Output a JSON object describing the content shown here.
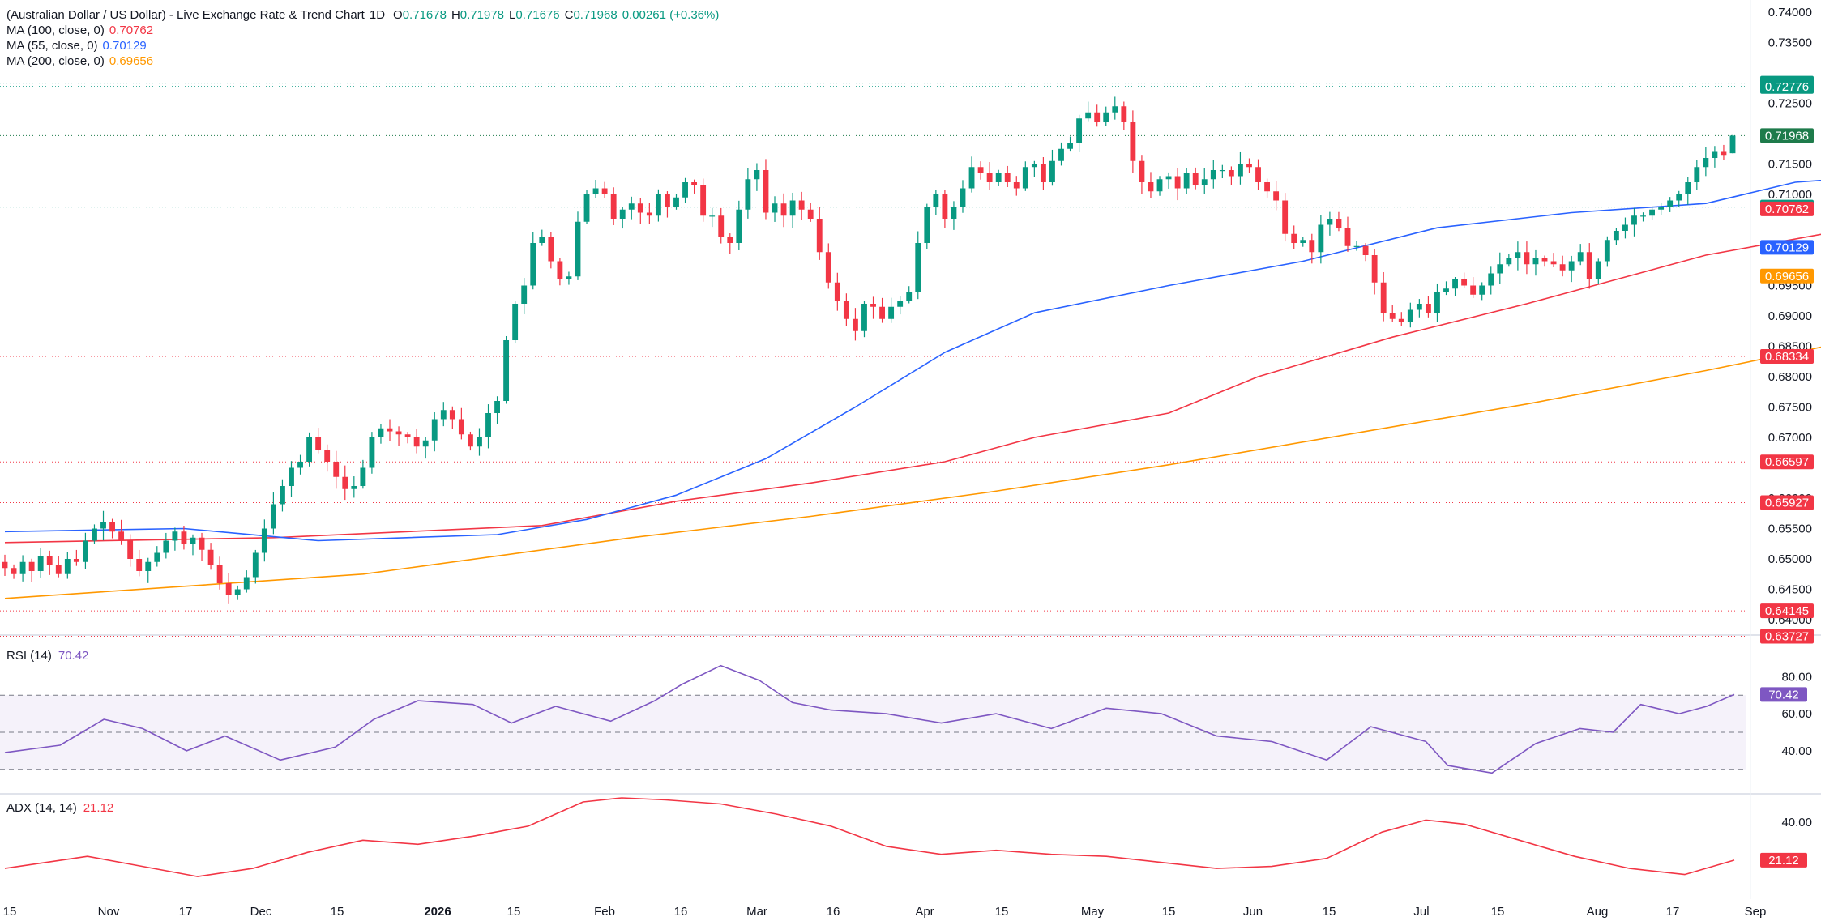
{
  "header": {
    "symbol": "(Australian Dollar / US Dollar) - Live Exchange Rate & Trend Chart",
    "interval": "1D",
    "ohlc": [
      {
        "key": "O",
        "value": "0.71678"
      },
      {
        "key": "H",
        "value": "0.71978"
      },
      {
        "key": "L",
        "value": "0.71676"
      },
      {
        "key": "C",
        "value": "0.71968"
      }
    ],
    "change": "0.00261 (+0.36%)"
  },
  "colors": {
    "up": "#089981",
    "down": "#f23645",
    "ma100": "#f23645",
    "ma55": "#2962ff",
    "ma200": "#ff9800",
    "rsi": "#7e57c2",
    "adx": "#f23645",
    "separator": "#e0e3eb",
    "label": "#131722"
  },
  "indicators": {
    "ma100": {
      "label": "MA (100, close, 0)",
      "value": "0.70762"
    },
    "ma55": {
      "label": "MA (55, close, 0)",
      "value": "0.70129"
    },
    "ma200": {
      "label": "MA (200, close, 0)",
      "value": "0.69656"
    },
    "rsi": {
      "label": "RSI (14)",
      "value": "70.42"
    },
    "adx": {
      "label": "ADX (14, 14)",
      "value": "21.12"
    }
  },
  "chart_data": [
    {
      "type": "candlestick",
      "title": "(Australian Dollar / US Dollar) - Live Exchange Rate & Trend Chart",
      "interval": "1D",
      "ylim": [
        0.6365,
        0.7405
      ],
      "y_ticks": [
        "0.74000",
        "0.73500",
        "0.72500",
        "0.71500",
        "0.71000",
        "0.69500",
        "0.69000",
        "0.68500",
        "0.68000",
        "0.67500",
        "0.67000",
        "0.66000",
        "0.65500",
        "0.65000",
        "0.64500",
        "0.64000"
      ],
      "x_ticks": [
        {
          "label": "15",
          "bold": false
        },
        {
          "label": "Nov",
          "bold": false
        },
        {
          "label": "17",
          "bold": false
        },
        {
          "label": "Dec",
          "bold": false
        },
        {
          "label": "15",
          "bold": false
        },
        {
          "label": "2026",
          "bold": true
        },
        {
          "label": "15",
          "bold": false
        },
        {
          "label": "Feb",
          "bold": false
        },
        {
          "label": "16",
          "bold": false
        },
        {
          "label": "Mar",
          "bold": false
        },
        {
          "label": "16",
          "bold": false
        },
        {
          "label": "Apr",
          "bold": false
        },
        {
          "label": "15",
          "bold": false
        },
        {
          "label": "May",
          "bold": false
        },
        {
          "label": "15",
          "bold": false
        },
        {
          "label": "Jun",
          "bold": false
        },
        {
          "label": "15",
          "bold": false
        },
        {
          "label": "Jul",
          "bold": false
        },
        {
          "label": "15",
          "bold": false
        },
        {
          "label": "Aug",
          "bold": false
        },
        {
          "label": "17",
          "bold": false
        },
        {
          "label": "Sep",
          "bold": false
        }
      ],
      "candles_close": [
        0.6485,
        0.6475,
        0.6495,
        0.648,
        0.6505,
        0.649,
        0.6475,
        0.65,
        0.6495,
        0.653,
        0.655,
        0.656,
        0.6545,
        0.653,
        0.65,
        0.648,
        0.6495,
        0.651,
        0.653,
        0.6545,
        0.6525,
        0.6535,
        0.6515,
        0.649,
        0.646,
        0.644,
        0.645,
        0.647,
        0.651,
        0.655,
        0.659,
        0.662,
        0.665,
        0.666,
        0.67,
        0.668,
        0.666,
        0.6635,
        0.6615,
        0.662,
        0.665,
        0.67,
        0.6715,
        0.671,
        0.6705,
        0.67,
        0.6685,
        0.6695,
        0.673,
        0.6745,
        0.673,
        0.6705,
        0.6685,
        0.67,
        0.674,
        0.676,
        0.686,
        0.692,
        0.695,
        0.702,
        0.703,
        0.699,
        0.696,
        0.6965,
        0.7055,
        0.71,
        0.711,
        0.71,
        0.706,
        0.7075,
        0.7085,
        0.707,
        0.7065,
        0.71,
        0.708,
        0.7095,
        0.712,
        0.7115,
        0.7065,
        0.7065,
        0.703,
        0.702,
        0.7075,
        0.7125,
        0.714,
        0.707,
        0.7085,
        0.7065,
        0.709,
        0.7075,
        0.706,
        0.7005,
        0.6955,
        0.6925,
        0.6895,
        0.6875,
        0.692,
        0.6915,
        0.6895,
        0.6915,
        0.6925,
        0.694,
        0.702,
        0.708,
        0.71,
        0.706,
        0.708,
        0.711,
        0.7145,
        0.7135,
        0.712,
        0.7135,
        0.712,
        0.711,
        0.7145,
        0.715,
        0.712,
        0.7155,
        0.7175,
        0.7185,
        0.7225,
        0.7235,
        0.722,
        0.7235,
        0.7245,
        0.722,
        0.7155,
        0.712,
        0.7105,
        0.7125,
        0.713,
        0.711,
        0.7135,
        0.7115,
        0.7125,
        0.714,
        0.714,
        0.713,
        0.715,
        0.7145,
        0.712,
        0.7105,
        0.709,
        0.7035,
        0.702,
        0.7025,
        0.7005,
        0.705,
        0.706,
        0.7045,
        0.7015,
        0.7015,
        0.7,
        0.6955,
        0.6905,
        0.6895,
        0.689,
        0.691,
        0.692,
        0.6905,
        0.694,
        0.6945,
        0.696,
        0.695,
        0.6935,
        0.695,
        0.697,
        0.6985,
        0.6995,
        0.7005,
        0.6985,
        0.6995,
        0.699,
        0.6985,
        0.6975,
        0.699,
        0.7005,
        0.696,
        0.699,
        0.7025,
        0.704,
        0.705,
        0.7065,
        0.7065,
        0.7075,
        0.708,
        0.709,
        0.71,
        0.712,
        0.7145,
        0.716,
        0.717,
        0.7165,
        0.7197
      ],
      "candles_first_open": 0.6495,
      "candles_last_ohlc": {
        "o": 0.71678,
        "h": 0.71978,
        "l": 0.71676,
        "c": 0.71968
      },
      "ma_lines": [
        {
          "name": "MA 100",
          "points": [
            [
              0,
              0.6527
            ],
            [
              30,
              0.6535
            ],
            [
              60,
              0.6555
            ],
            [
              75,
              0.6595
            ],
            [
              90,
              0.6625
            ],
            [
              105,
              0.666
            ],
            [
              115,
              0.67
            ],
            [
              130,
              0.674
            ],
            [
              140,
              0.68
            ],
            [
              155,
              0.6865
            ],
            [
              170,
              0.692
            ],
            [
              180,
              0.696
            ],
            [
              190,
              0.7
            ],
            [
              205,
              0.704
            ],
            [
              215,
              0.7079
            ],
            [
              230,
              0.709
            ],
            [
              245,
              0.708
            ],
            [
              255,
              0.7064
            ],
            [
              270,
              0.7066
            ],
            [
              282,
              0.7076
            ]
          ]
        },
        {
          "name": "MA 55",
          "points": [
            [
              0,
              0.6545
            ],
            [
              20,
              0.655
            ],
            [
              35,
              0.653
            ],
            [
              55,
              0.654
            ],
            [
              65,
              0.6565
            ],
            [
              75,
              0.6605
            ],
            [
              85,
              0.6665
            ],
            [
              95,
              0.675
            ],
            [
              105,
              0.684
            ],
            [
              115,
              0.6905
            ],
            [
              130,
              0.695
            ],
            [
              145,
              0.699
            ],
            [
              160,
              0.7045
            ],
            [
              175,
              0.707
            ],
            [
              190,
              0.7085
            ],
            [
              200,
              0.712
            ],
            [
              212,
              0.7133
            ],
            [
              225,
              0.71
            ],
            [
              235,
              0.7065
            ],
            [
              245,
              0.7035
            ],
            [
              256,
              0.7
            ],
            [
              270,
              0.6992
            ],
            [
              282,
              0.7013
            ]
          ]
        },
        {
          "name": "MA 200",
          "points": [
            [
              0,
              0.6435
            ],
            [
              40,
              0.6475
            ],
            [
              70,
              0.6535
            ],
            [
              90,
              0.657
            ],
            [
              110,
              0.661
            ],
            [
              130,
              0.6655
            ],
            [
              150,
              0.6705
            ],
            [
              170,
              0.6755
            ],
            [
              190,
              0.681
            ],
            [
              205,
              0.6855
            ],
            [
              222,
              0.688
            ],
            [
              240,
              0.6905
            ],
            [
              260,
              0.6925
            ],
            [
              282,
              0.6966
            ]
          ]
        }
      ],
      "horizontal_levels": [
        {
          "label": "0.72831",
          "value": 0.72831,
          "color": "#089981"
        },
        {
          "label": "0.72776",
          "value": 0.72776,
          "color": "#089981"
        },
        {
          "label": "0.71968",
          "value": 0.71968,
          "color": "#1e7b4b"
        },
        {
          "label": "0.70791",
          "value": 0.70791,
          "color": "#089981"
        },
        {
          "label": "0.70762",
          "value": 0.70762,
          "color": "#f23645"
        },
        {
          "label": "0.70129",
          "value": 0.70129,
          "color": "#2962ff"
        },
        {
          "label": "0.69656",
          "value": 0.69656,
          "color": "#ff9800"
        },
        {
          "label": "0.68334",
          "value": 0.68334,
          "color": "#f23645"
        },
        {
          "label": "0.66597",
          "value": 0.66597,
          "color": "#f23645"
        },
        {
          "label": "0.65927",
          "value": 0.65927,
          "color": "#f23645"
        },
        {
          "label": "0.64145",
          "value": 0.64145,
          "color": "#f23645"
        },
        {
          "label": "0.63727",
          "value": 0.63727,
          "color": "#f23645"
        }
      ]
    },
    {
      "type": "line",
      "title": "RSI (14)",
      "ylim": [
        22,
        92
      ],
      "y_ticks": [
        "80.00",
        "60.00",
        "40.00"
      ],
      "bands": [
        70,
        50,
        30
      ],
      "last_label": "70.42",
      "points": [
        [
          0,
          39
        ],
        [
          10,
          43
        ],
        [
          18,
          57
        ],
        [
          25,
          52
        ],
        [
          33,
          40
        ],
        [
          40,
          48
        ],
        [
          50,
          35
        ],
        [
          60,
          42
        ],
        [
          67,
          57
        ],
        [
          75,
          67
        ],
        [
          85,
          65
        ],
        [
          92,
          55
        ],
        [
          100,
          64
        ],
        [
          110,
          56
        ],
        [
          118,
          67
        ],
        [
          123,
          76
        ],
        [
          130,
          86
        ],
        [
          137,
          78
        ],
        [
          143,
          66
        ],
        [
          150,
          62
        ],
        [
          160,
          60
        ],
        [
          170,
          55
        ],
        [
          180,
          60
        ],
        [
          190,
          52
        ],
        [
          200,
          63
        ],
        [
          210,
          60
        ],
        [
          220,
          48
        ],
        [
          230,
          45
        ],
        [
          240,
          35
        ],
        [
          248,
          53
        ],
        [
          258,
          45
        ],
        [
          262,
          32
        ],
        [
          270,
          28
        ],
        [
          278,
          44
        ],
        [
          286,
          52
        ],
        [
          292,
          50
        ],
        [
          297,
          65
        ],
        [
          304,
          60
        ],
        [
          309,
          64
        ],
        [
          314,
          70.42
        ]
      ]
    },
    {
      "type": "line",
      "title": "ADX (14, 14)",
      "ylim": [
        5,
        50
      ],
      "y_ticks": [
        "40.00"
      ],
      "last_label": "21.12",
      "points": [
        [
          0,
          17
        ],
        [
          15,
          23
        ],
        [
          25,
          18
        ],
        [
          35,
          13
        ],
        [
          45,
          17
        ],
        [
          55,
          25
        ],
        [
          65,
          31
        ],
        [
          75,
          29
        ],
        [
          85,
          33
        ],
        [
          95,
          38
        ],
        [
          105,
          50
        ],
        [
          112,
          52
        ],
        [
          120,
          51
        ],
        [
          130,
          49
        ],
        [
          140,
          44
        ],
        [
          150,
          38
        ],
        [
          160,
          28
        ],
        [
          170,
          24
        ],
        [
          180,
          26
        ],
        [
          190,
          24
        ],
        [
          200,
          23
        ],
        [
          210,
          20
        ],
        [
          220,
          17
        ],
        [
          230,
          18
        ],
        [
          240,
          22
        ],
        [
          250,
          35
        ],
        [
          258,
          41
        ],
        [
          265,
          39
        ],
        [
          275,
          31
        ],
        [
          285,
          23
        ],
        [
          295,
          17
        ],
        [
          305,
          14
        ],
        [
          314,
          21.12
        ]
      ]
    }
  ]
}
